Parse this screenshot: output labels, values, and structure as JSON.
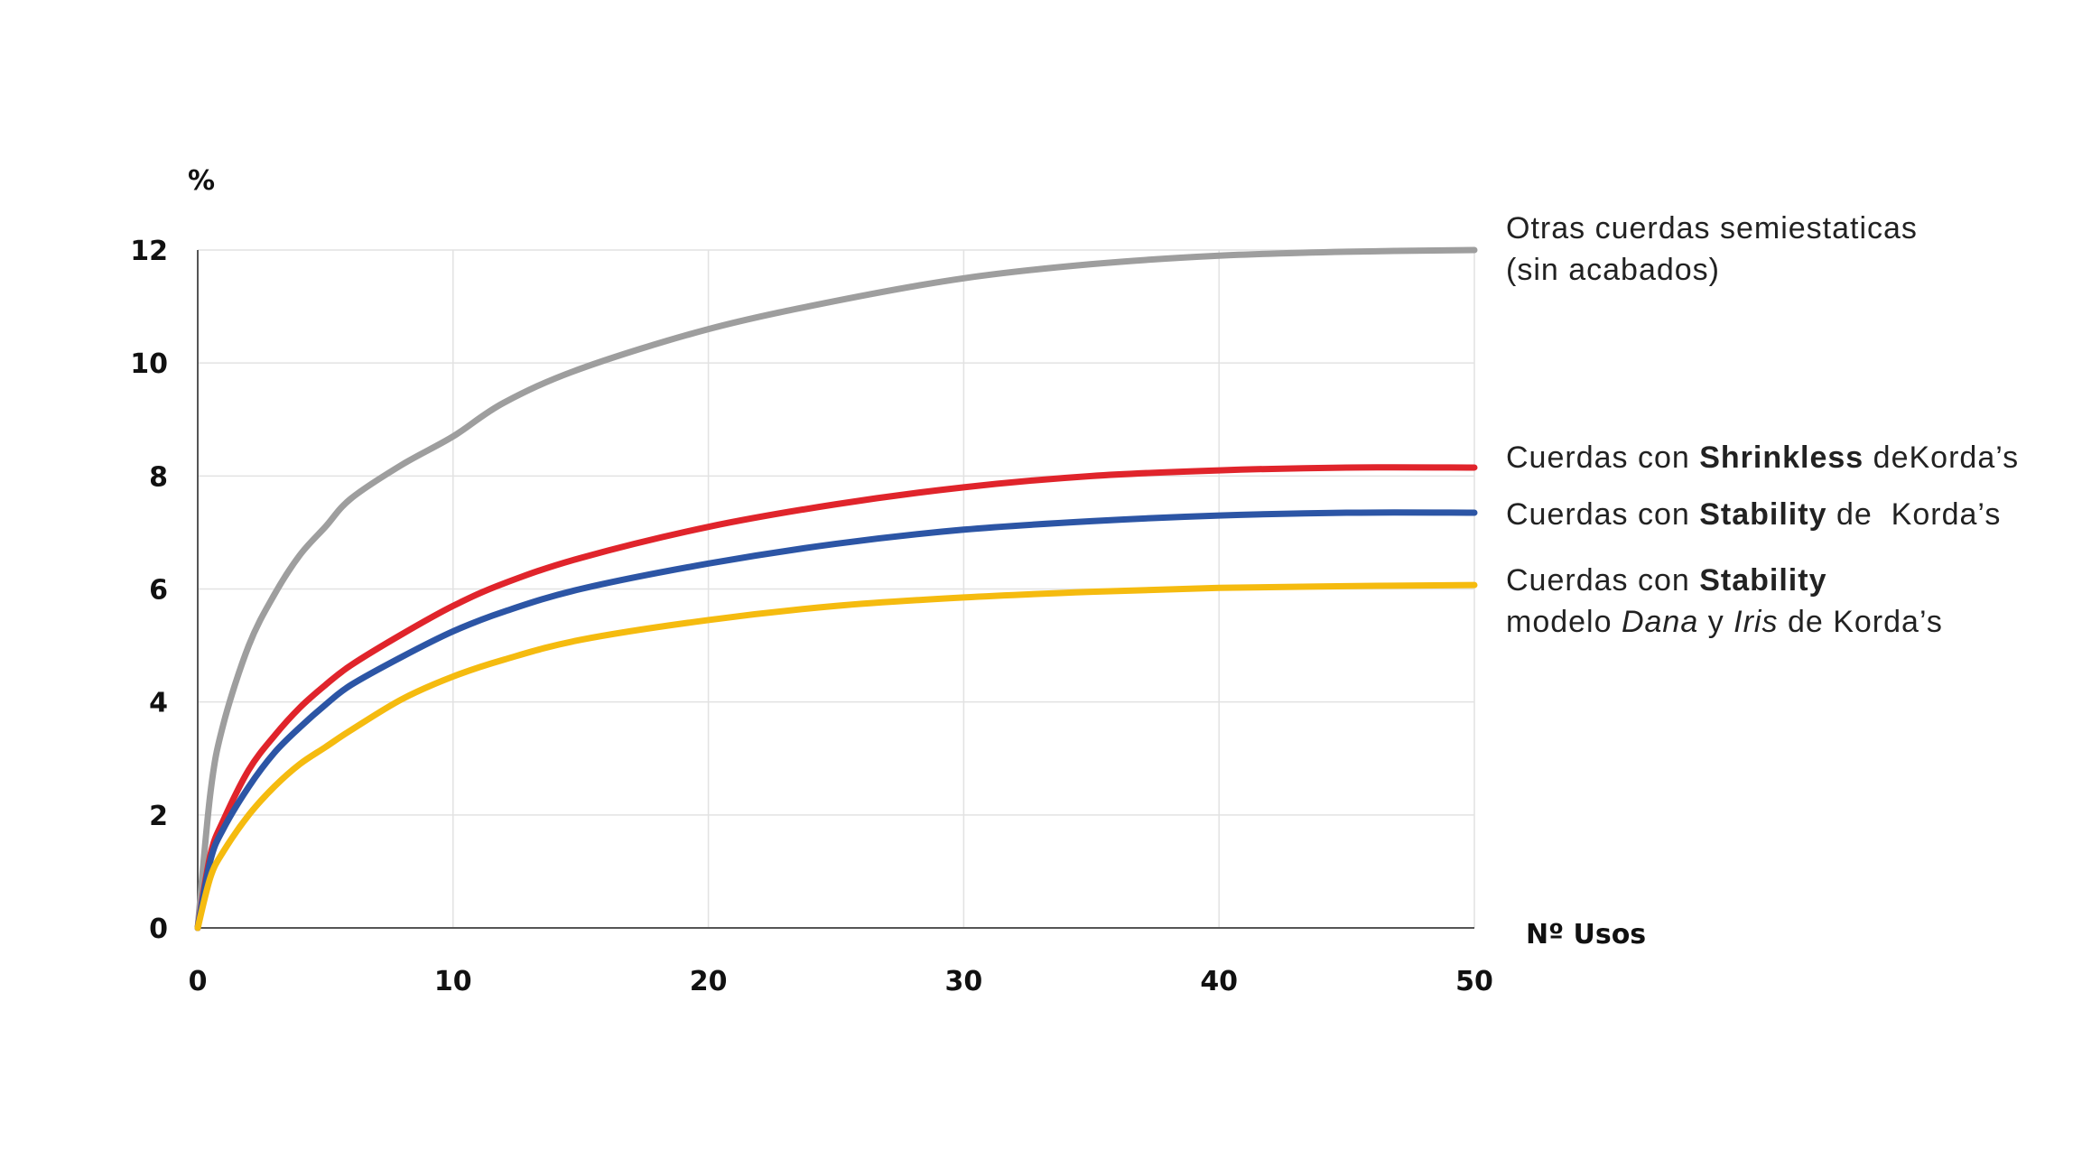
{
  "chart_data": {
    "type": "line",
    "xlabel": "Nº Usos",
    "ylabel": "%",
    "xlim": [
      0,
      50
    ],
    "ylim": [
      0,
      12
    ],
    "x_ticks": [
      "0",
      "10",
      "20",
      "30",
      "40",
      "50"
    ],
    "y_ticks": [
      "0",
      "2",
      "4",
      "6",
      "8",
      "10",
      "12"
    ],
    "grid": true,
    "legend_placement": "right",
    "x": [
      0,
      0.5,
      1,
      2,
      3,
      4,
      5,
      6,
      8,
      10,
      12,
      15,
      20,
      25,
      30,
      35,
      40,
      45,
      50
    ],
    "series": [
      {
        "color": "#9e9e9e",
        "label_parts": {
          "line1": "Otras cuerdas semiestaticas",
          "line2": "(sin acabados)"
        },
        "values": [
          0,
          2.4,
          3.6,
          5.0,
          5.9,
          6.6,
          7.1,
          7.6,
          8.2,
          8.7,
          9.3,
          9.9,
          10.6,
          11.1,
          11.5,
          11.75,
          11.9,
          11.97,
          12.0
        ]
      },
      {
        "color": "#e0242b",
        "label_parts": {
          "prefix": "Cuerdas con",
          "bold": "Shrinkless",
          "mid": "de",
          "suffix": "Korda’s"
        },
        "values": [
          0,
          1.3,
          1.9,
          2.8,
          3.4,
          3.9,
          4.3,
          4.65,
          5.2,
          5.7,
          6.1,
          6.55,
          7.1,
          7.5,
          7.8,
          8.0,
          8.1,
          8.15,
          8.15
        ]
      },
      {
        "color": "#2c55a5",
        "label_parts": {
          "prefix": "Cuerdas con",
          "bold": "Stability",
          "mid": "de",
          "suffix": "Korda’s"
        },
        "values": [
          0,
          1.2,
          1.75,
          2.5,
          3.1,
          3.55,
          3.95,
          4.3,
          4.8,
          5.25,
          5.6,
          6.0,
          6.45,
          6.8,
          7.05,
          7.2,
          7.3,
          7.35,
          7.35
        ]
      },
      {
        "color": "#f5bb0f",
        "label_parts": {
          "prefix": "Cuerdas con",
          "bold": "Stability",
          "line2_a": "modelo",
          "italic1": "Dana",
          "line2_b": "y",
          "italic2": "Iris",
          "line2_c": "de",
          "suffix": "Korda’s"
        },
        "values": [
          0,
          0.9,
          1.35,
          2.0,
          2.5,
          2.9,
          3.2,
          3.5,
          4.05,
          4.45,
          4.75,
          5.1,
          5.45,
          5.7,
          5.85,
          5.95,
          6.02,
          6.05,
          6.07
        ]
      }
    ]
  }
}
